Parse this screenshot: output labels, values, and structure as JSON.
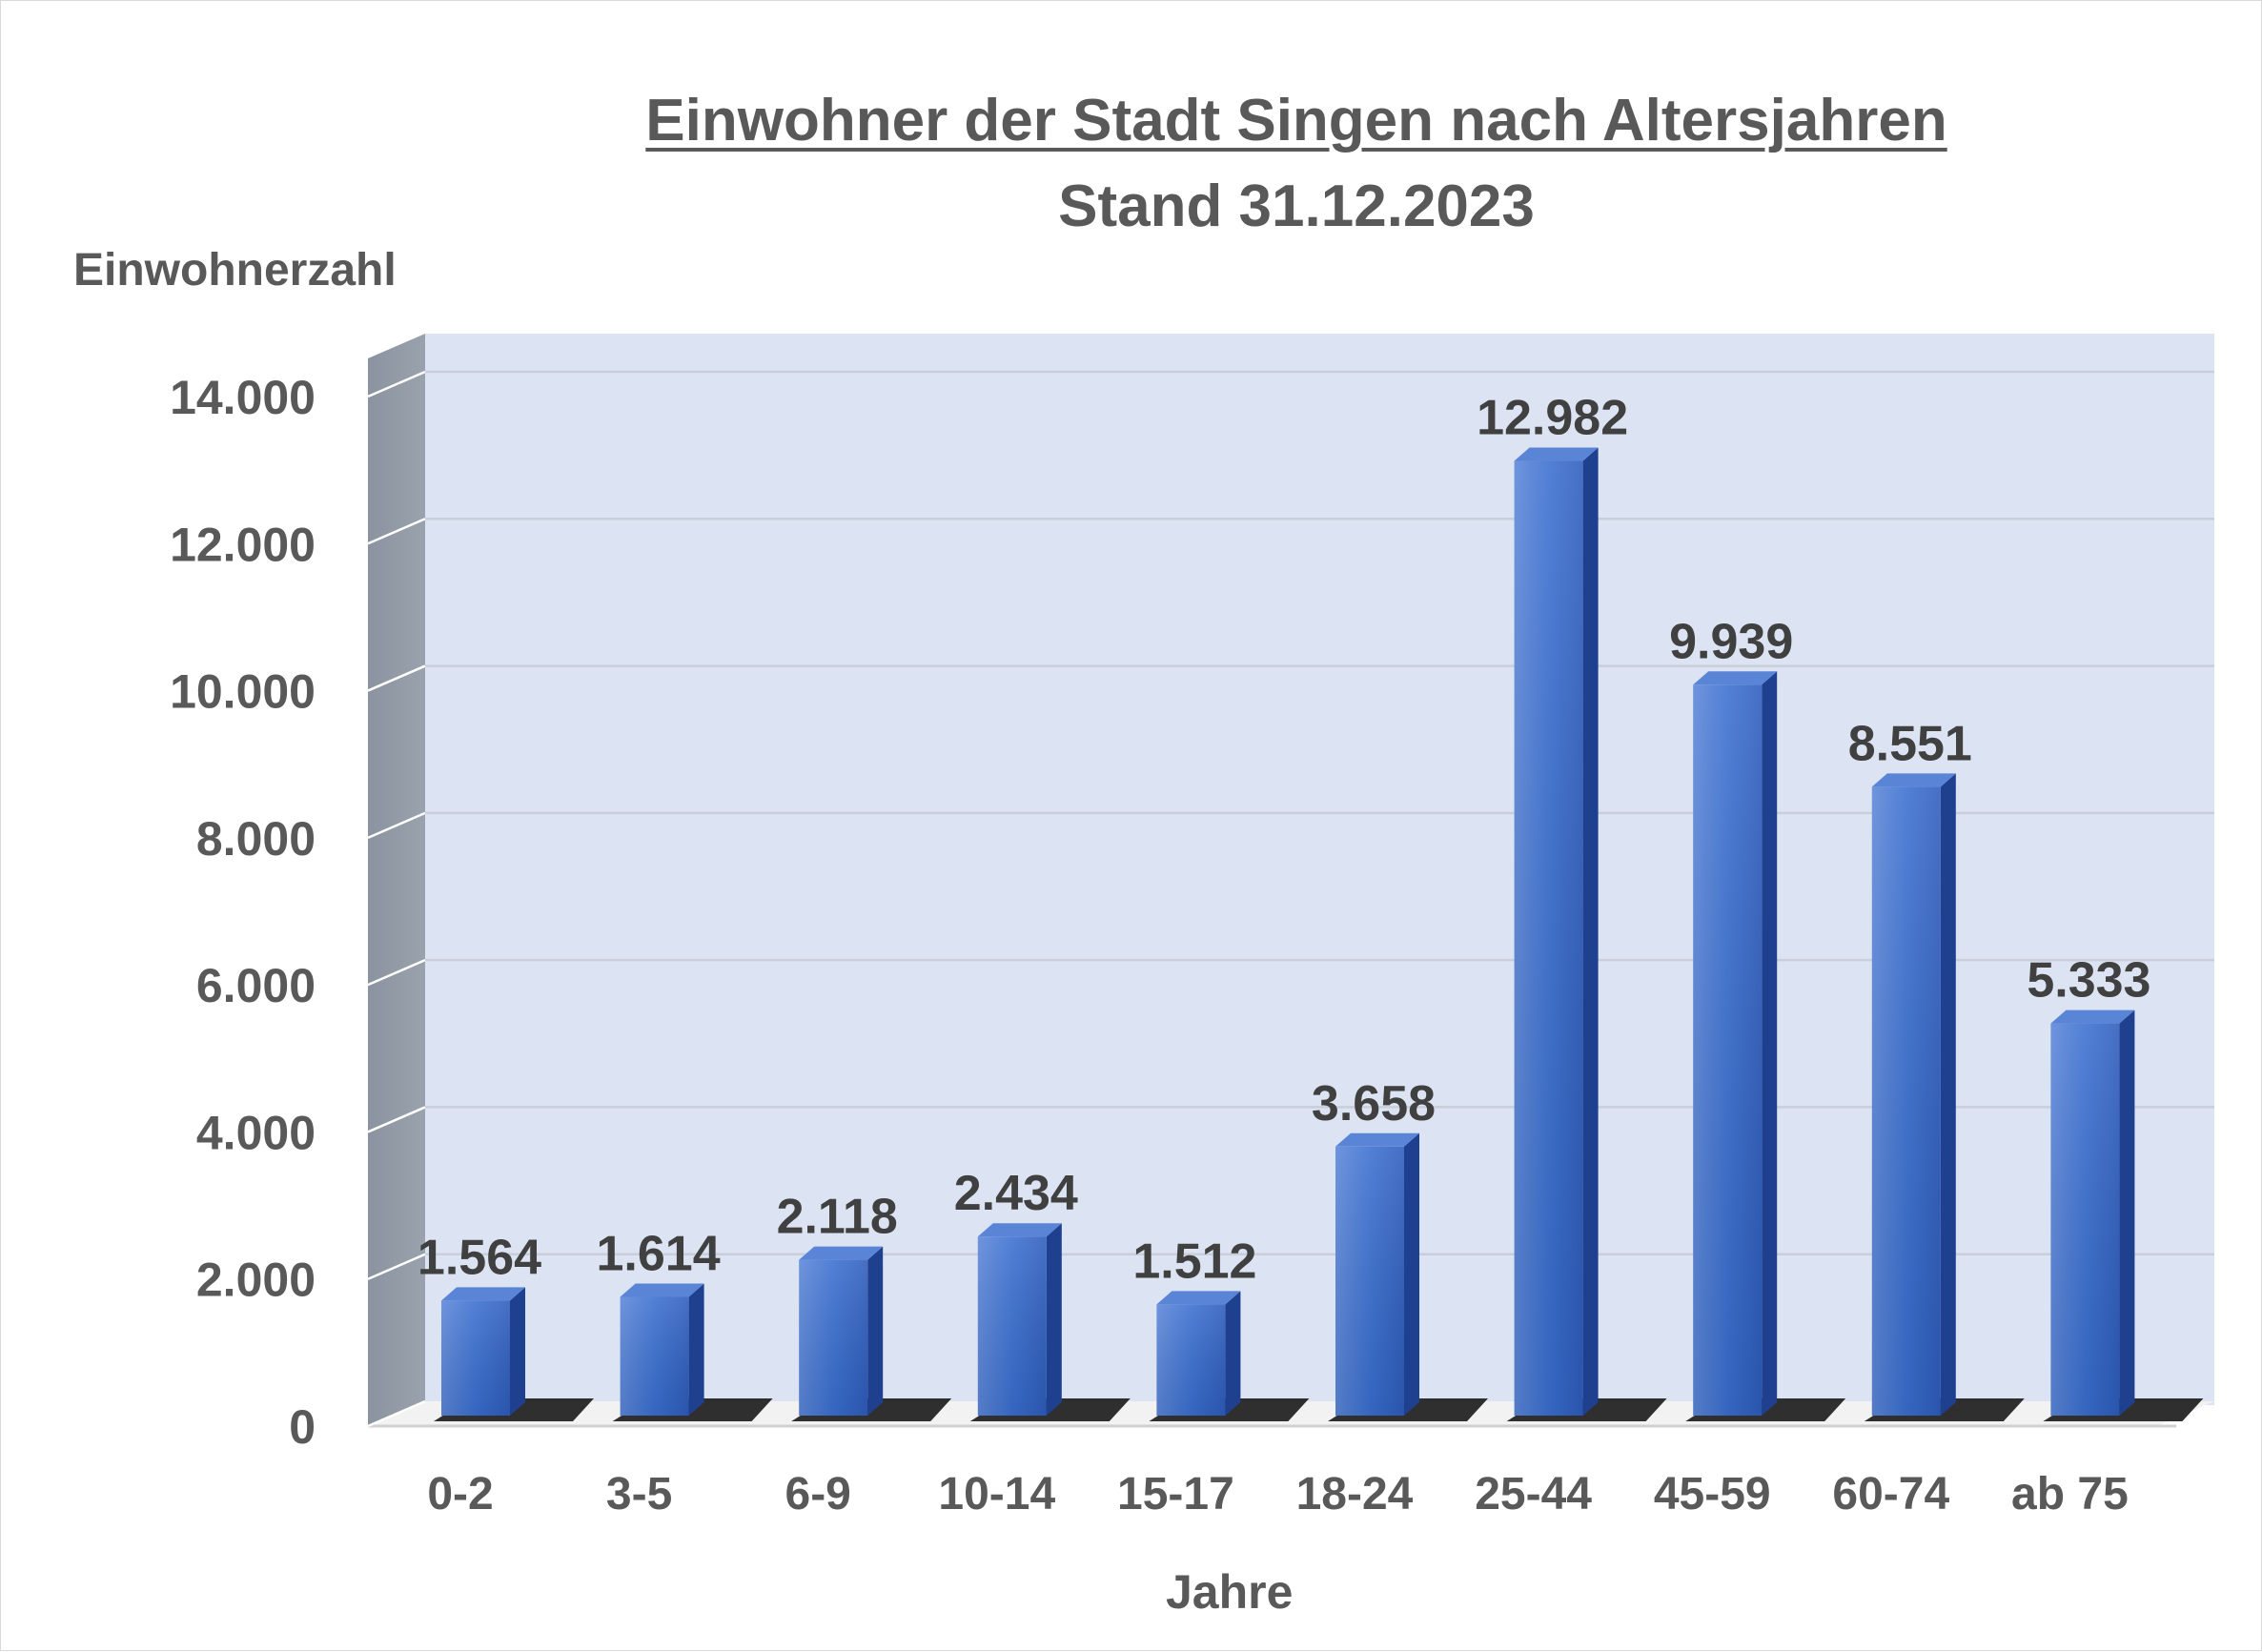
{
  "chart_data": {
    "type": "bar",
    "title": "Einwohner der Stadt Singen nach Altersjahren",
    "subtitle": "Stand 31.12.2023",
    "xlabel": "Jahre",
    "ylabel": "Einwohnerzahl",
    "categories": [
      "0-2",
      "3-5",
      "6-9",
      "10-14",
      "15-17",
      "18-24",
      "25-44",
      "45-59",
      "60-74",
      "ab 75"
    ],
    "values": [
      1564,
      1614,
      2118,
      2434,
      1512,
      3658,
      12982,
      9939,
      8551,
      5333
    ],
    "value_labels": [
      "1.564",
      "1.614",
      "2.118",
      "2.434",
      "1.512",
      "3.658",
      "12.982",
      "9.939",
      "8.551",
      "5.333"
    ],
    "yticks": [
      0,
      2000,
      4000,
      6000,
      8000,
      10000,
      12000,
      14000
    ],
    "ytick_labels": [
      "0",
      "2.000",
      "4.000",
      "6.000",
      "8.000",
      "10.000",
      "12.000",
      "14.000"
    ],
    "ylim": [
      0,
      14000
    ],
    "grid": true,
    "legend": "none",
    "colors": {
      "bar": "#3b6fcf",
      "bar_side": "#1f3f8f",
      "bar_top": "#5a85d6",
      "back_wall": "#dce3f2",
      "side_wall": "#8c95a3",
      "text": "#595959"
    }
  }
}
